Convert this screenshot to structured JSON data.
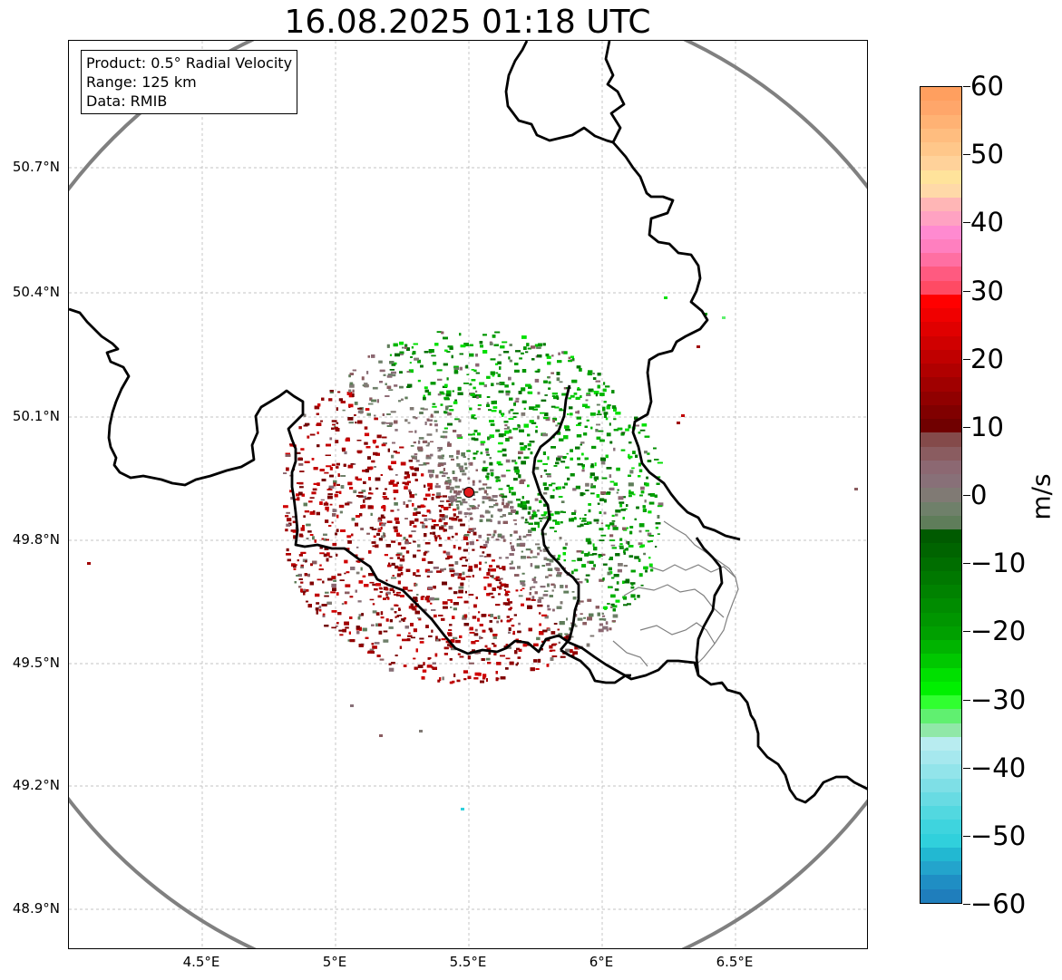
{
  "title": "16.08.2025 01:18 UTC",
  "info": {
    "product": "Product: 0.5° Radial Velocity",
    "range": "Range: 125 km",
    "source": "Data: RMIB"
  },
  "axes": {
    "lon_min": 4.0,
    "lon_max": 7.0,
    "lat_min": 48.8,
    "lat_max": 50.98,
    "x_ticks": [
      {
        "value": 4.5,
        "label": "4.5°E"
      },
      {
        "value": 5.0,
        "label": "5°E"
      },
      {
        "value": 5.5,
        "label": "5.5°E"
      },
      {
        "value": 6.0,
        "label": "6°E"
      },
      {
        "value": 6.5,
        "label": "6.5°E"
      }
    ],
    "y_ticks": [
      {
        "value": 48.9,
        "label": "48.9°N"
      },
      {
        "value": 49.2,
        "label": "49.2°N"
      },
      {
        "value": 49.5,
        "label": "49.5°N"
      },
      {
        "value": 49.8,
        "label": "49.8°N"
      },
      {
        "value": 50.1,
        "label": "50.1°N"
      },
      {
        "value": 50.4,
        "label": "50.4°N"
      },
      {
        "value": 50.7,
        "label": "50.7°N"
      }
    ],
    "grid": true
  },
  "radar": {
    "site_lon": 5.505,
    "site_lat": 49.914,
    "range_km": 125,
    "site_marker_color": "#e31a1c",
    "range_ring_color": "#808080"
  },
  "colorbar": {
    "unit": "m/s",
    "min": -60,
    "max": 60,
    "ticks": [
      60,
      50,
      40,
      30,
      20,
      10,
      0,
      -10,
      -20,
      -30,
      -40,
      -50,
      -60
    ],
    "tick_labels": [
      "60",
      "50",
      "40",
      "30",
      "20",
      "10",
      "0",
      "−10",
      "−20",
      "−30",
      "−40",
      "−50",
      "−60"
    ],
    "colors_top_to_bottom": [
      "#ff9f5f",
      "#ffa66a",
      "#ffb274",
      "#ffbd7f",
      "#ffc78a",
      "#ffd29a",
      "#ffe39b",
      "#ffd9a8",
      "#ffb6b6",
      "#ffa2c2",
      "#ff8ad0",
      "#ff7fbf",
      "#ff6fa2",
      "#ff5a80",
      "#ff4a64",
      "#ff0000",
      "#f00000",
      "#e00000",
      "#d00000",
      "#c00000",
      "#b00000",
      "#a00000",
      "#900000",
      "#800000",
      "#700000",
      "#844a4a",
      "#8a5c60",
      "#8c6872",
      "#887078",
      "#807a74",
      "#6f806a",
      "#5f7d5a",
      "#005a00",
      "#006400",
      "#006e00",
      "#007800",
      "#008200",
      "#008c00",
      "#009600",
      "#00a000",
      "#00b400",
      "#00c800",
      "#00e000",
      "#00f000",
      "#30ff30",
      "#60f070",
      "#90e8a8",
      "#b8ecf0",
      "#a6e8ee",
      "#92e4ea",
      "#7edfe6",
      "#68dbe3",
      "#52d8e0",
      "#3ed4de",
      "#30d0dc",
      "#22b8d2",
      "#23a4cc",
      "#1f8ec4",
      "#1f7ebc"
    ]
  },
  "colors": {
    "country_border": "#000000",
    "admin_border": "#808080",
    "grid": "#b0b0b0",
    "inbound_velocity": "#009600",
    "outbound_velocity": "#a00000",
    "near_zero_velocity": "#8a7a7a"
  }
}
